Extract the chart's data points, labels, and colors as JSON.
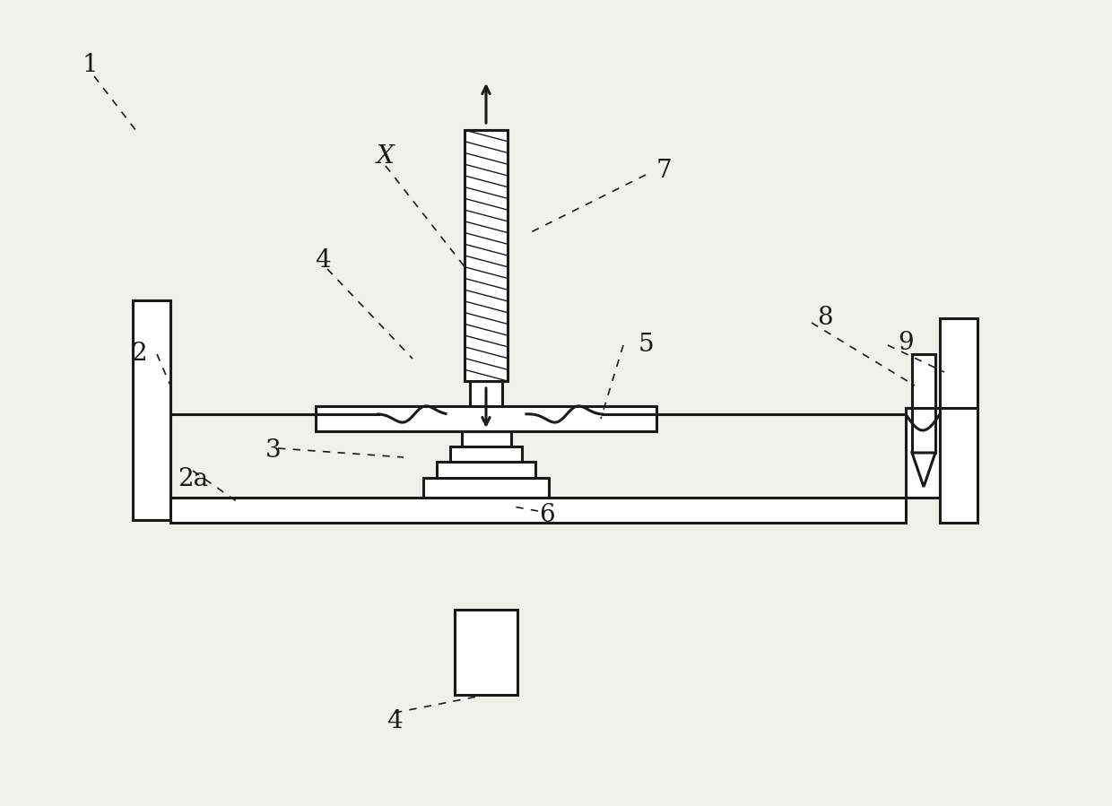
{
  "bg_color": "#f0f0ec",
  "line_color": "#1a1a1a",
  "lw": 2.2,
  "fs": 20
}
